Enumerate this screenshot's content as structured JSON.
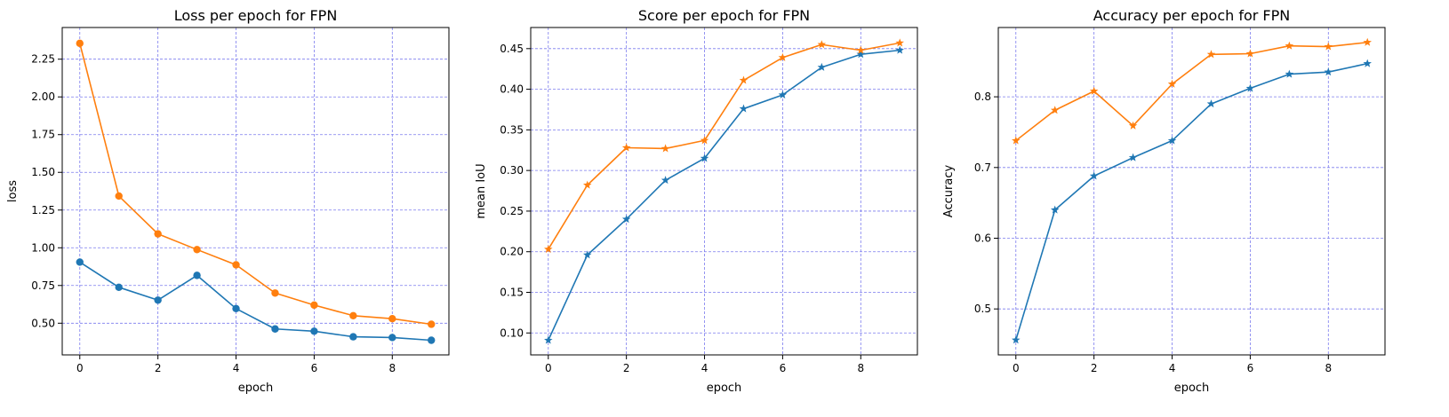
{
  "chart_data": [
    {
      "type": "line",
      "title": "Loss per epoch for FPN",
      "xlabel": "epoch",
      "ylabel": "loss",
      "xlim": [
        -0.45,
        9.45
      ],
      "ylim": [
        0.29,
        2.46
      ],
      "xticks": [
        0,
        2,
        4,
        6,
        8
      ],
      "xtick_labels": [
        "0",
        "2",
        "4",
        "6",
        "8"
      ],
      "yticks": [
        0.5,
        0.75,
        1.0,
        1.25,
        1.5,
        1.75,
        2.0,
        2.25
      ],
      "ytick_labels": [
        "0.50",
        "0.75",
        "1.00",
        "1.25",
        "1.50",
        "1.75",
        "2.00",
        "2.25"
      ],
      "grid": true,
      "marker": "circle",
      "x": [
        0,
        1,
        2,
        3,
        4,
        5,
        6,
        7,
        8,
        9
      ],
      "series": [
        {
          "color": "#1f77b4",
          "values": [
            0.905,
            0.738,
            0.653,
            0.817,
            0.597,
            0.462,
            0.447,
            0.41,
            0.405,
            0.387
          ]
        },
        {
          "color": "#ff7f0e",
          "values": [
            2.355,
            1.343,
            1.092,
            0.988,
            0.887,
            0.7,
            0.62,
            0.55,
            0.53,
            0.493
          ]
        }
      ]
    },
    {
      "type": "line",
      "title": "Score per epoch for FPN",
      "xlabel": "epoch",
      "ylabel": "mean IoU",
      "xlim": [
        -0.45,
        9.45
      ],
      "ylim": [
        0.073,
        0.476
      ],
      "xticks": [
        0,
        2,
        4,
        6,
        8
      ],
      "xtick_labels": [
        "0",
        "2",
        "4",
        "6",
        "8"
      ],
      "yticks": [
        0.1,
        0.15,
        0.2,
        0.25,
        0.3,
        0.35,
        0.4,
        0.45
      ],
      "ytick_labels": [
        "0.10",
        "0.15",
        "0.20",
        "0.25",
        "0.30",
        "0.35",
        "0.40",
        "0.45"
      ],
      "grid": true,
      "marker": "star",
      "x": [
        0,
        1,
        2,
        3,
        4,
        5,
        6,
        7,
        8,
        9
      ],
      "series": [
        {
          "color": "#1f77b4",
          "values": [
            0.091,
            0.196,
            0.24,
            0.288,
            0.315,
            0.376,
            0.393,
            0.427,
            0.443,
            0.448
          ]
        },
        {
          "color": "#ff7f0e",
          "values": [
            0.203,
            0.282,
            0.328,
            0.327,
            0.337,
            0.411,
            0.439,
            0.455,
            0.448,
            0.457
          ]
        }
      ]
    },
    {
      "type": "line",
      "title": "Accuracy per epoch for FPN",
      "xlabel": "epoch",
      "ylabel": "Accuracy",
      "xlim": [
        -0.45,
        9.45
      ],
      "ylim": [
        0.435,
        0.898
      ],
      "xticks": [
        0,
        2,
        4,
        6,
        8
      ],
      "xtick_labels": [
        "0",
        "2",
        "4",
        "6",
        "8"
      ],
      "yticks": [
        0.5,
        0.6,
        0.7,
        0.8
      ],
      "ytick_labels": [
        "0.5",
        "0.6",
        "0.7",
        "0.8"
      ],
      "grid": true,
      "marker": "star",
      "x": [
        0,
        1,
        2,
        3,
        4,
        5,
        6,
        7,
        8,
        9
      ],
      "series": [
        {
          "color": "#1f77b4",
          "values": [
            0.456,
            0.64,
            0.688,
            0.714,
            0.738,
            0.79,
            0.812,
            0.832,
            0.835,
            0.847
          ]
        },
        {
          "color": "#ff7f0e",
          "values": [
            0.738,
            0.781,
            0.808,
            0.759,
            0.818,
            0.86,
            0.861,
            0.872,
            0.871,
            0.877
          ]
        }
      ]
    }
  ]
}
